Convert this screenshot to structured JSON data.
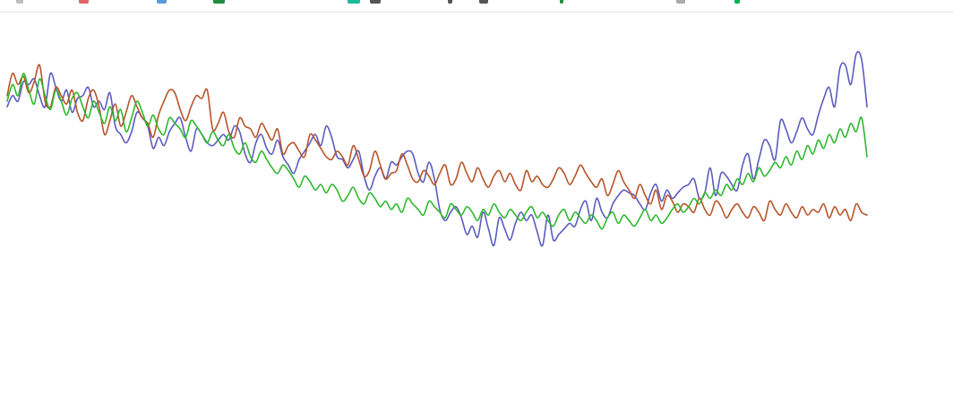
{
  "toolbar": {
    "icons": [
      {
        "name": "overflow-icon",
        "color": "#bdbdbd"
      },
      {
        "name": "red-tab-icon",
        "color": "#e06666"
      },
      {
        "name": "blue-tab-icon",
        "color": "#5b9bd5"
      },
      {
        "name": "green-tab-icon",
        "color": "#1e8e3e"
      },
      {
        "name": "teal-app-icon",
        "color": "#1abc9c"
      },
      {
        "name": "dark-doc-icon",
        "color": "#555555"
      },
      {
        "name": "slash-icon",
        "color": "#555555"
      },
      {
        "name": "at-icon",
        "color": "#555555"
      },
      {
        "name": "green-marker-icon",
        "color": "#1e8e3e"
      },
      {
        "name": "gray-dots-icon",
        "color": "#aaaaaa"
      },
      {
        "name": "green-pin-icon",
        "color": "#00b050"
      }
    ]
  },
  "chart_data": {
    "type": "line",
    "title": "",
    "xlabel": "",
    "ylabel": "",
    "grid": false,
    "legend": "none",
    "xlim": [
      0,
      160
    ],
    "ylim": [
      0,
      100
    ],
    "series": [
      {
        "color": "#5b5bbf",
        "values": [
          68,
          72,
          70,
          77,
          76,
          78,
          72,
          68,
          80,
          75,
          70,
          74,
          66,
          71,
          72,
          75,
          68,
          70,
          67,
          73,
          61,
          58,
          55,
          59,
          66,
          64,
          61,
          53,
          57,
          54,
          59,
          62,
          64,
          57,
          52,
          60,
          58,
          55,
          54,
          56,
          58,
          56,
          61,
          59,
          51,
          48,
          55,
          58,
          53,
          51,
          56,
          50,
          47,
          44,
          49,
          52,
          55,
          58,
          54,
          61,
          57,
          50,
          49,
          46,
          49,
          52,
          43,
          38,
          43,
          46,
          42,
          48,
          47,
          50,
          52,
          51,
          44,
          41,
          48,
          42,
          31,
          27,
          30,
          32,
          28,
          22,
          25,
          21,
          30,
          24,
          18,
          28,
          24,
          20,
          26,
          30,
          27,
          29,
          23,
          18,
          29,
          20,
          22,
          24,
          26,
          25,
          31,
          34,
          27,
          35,
          30,
          28,
          33,
          36,
          38,
          37,
          36,
          33,
          31,
          37,
          40,
          34,
          38,
          35,
          37,
          39,
          40,
          42,
          35,
          37,
          46,
          36,
          44,
          43,
          40,
          38,
          47,
          51,
          42,
          49,
          56,
          54,
          49,
          63,
          60,
          55,
          59,
          64,
          60,
          58,
          65,
          71,
          75,
          68,
          82,
          83,
          76,
          87,
          85,
          68
        ]
      },
      {
        "color": "#b7542a",
        "values": [
          72,
          80,
          76,
          79,
          73,
          77,
          83,
          70,
          68,
          75,
          72,
          69,
          74,
          66,
          63,
          71,
          74,
          68,
          58,
          63,
          69,
          61,
          66,
          72,
          68,
          64,
          62,
          57,
          65,
          70,
          74,
          73,
          67,
          63,
          68,
          72,
          71,
          74,
          60,
          62,
          66,
          59,
          57,
          64,
          61,
          60,
          57,
          62,
          59,
          56,
          60,
          51,
          54,
          55,
          52,
          50,
          58,
          56,
          53,
          50,
          49,
          52,
          50,
          47,
          54,
          49,
          43,
          45,
          52,
          47,
          42,
          44,
          45,
          51,
          47,
          42,
          41,
          45,
          43,
          40,
          44,
          47,
          40,
          42,
          48,
          44,
          41,
          46,
          42,
          39,
          43,
          45,
          41,
          44,
          40,
          38,
          45,
          41,
          43,
          40,
          39,
          42,
          46,
          44,
          40,
          43,
          47,
          44,
          41,
          39,
          42,
          36,
          40,
          45,
          41,
          38,
          35,
          40,
          36,
          33,
          38,
          31,
          36,
          34,
          30,
          33,
          32,
          30,
          35,
          31,
          29,
          34,
          32,
          28,
          31,
          33,
          30,
          28,
          32,
          30,
          27,
          34,
          31,
          29,
          33,
          30,
          28,
          32,
          29,
          31,
          30,
          33,
          28,
          32,
          29,
          31,
          27,
          33,
          30,
          29
        ]
      },
      {
        "color": "#2eb82e",
        "values": [
          70,
          76,
          72,
          80,
          74,
          69,
          78,
          72,
          67,
          74,
          70,
          65,
          71,
          73,
          68,
          64,
          70,
          66,
          62,
          68,
          63,
          67,
          59,
          64,
          70,
          66,
          61,
          65,
          60,
          58,
          64,
          62,
          60,
          57,
          63,
          61,
          58,
          55,
          59,
          56,
          54,
          58,
          53,
          51,
          55,
          50,
          48,
          52,
          49,
          46,
          44,
          47,
          45,
          42,
          39,
          43,
          41,
          38,
          40,
          37,
          40,
          38,
          34,
          36,
          39,
          35,
          33,
          37,
          35,
          32,
          34,
          31,
          33,
          30,
          35,
          33,
          31,
          29,
          34,
          32,
          30,
          28,
          33,
          31,
          29,
          32,
          30,
          27,
          31,
          29,
          33,
          30,
          28,
          31,
          29,
          27,
          30,
          32,
          28,
          30,
          27,
          25,
          29,
          31,
          27,
          30,
          28,
          26,
          29,
          27,
          24,
          28,
          30,
          26,
          29,
          27,
          25,
          28,
          31,
          27,
          29,
          26,
          28,
          31,
          33,
          30,
          32,
          35,
          33,
          37,
          35,
          38,
          36,
          40,
          38,
          42,
          40,
          44,
          41,
          46,
          43,
          45,
          48,
          46,
          50,
          47,
          52,
          49,
          54,
          51,
          56,
          53,
          58,
          55,
          60,
          57,
          62,
          59,
          64,
          50
        ]
      }
    ]
  }
}
